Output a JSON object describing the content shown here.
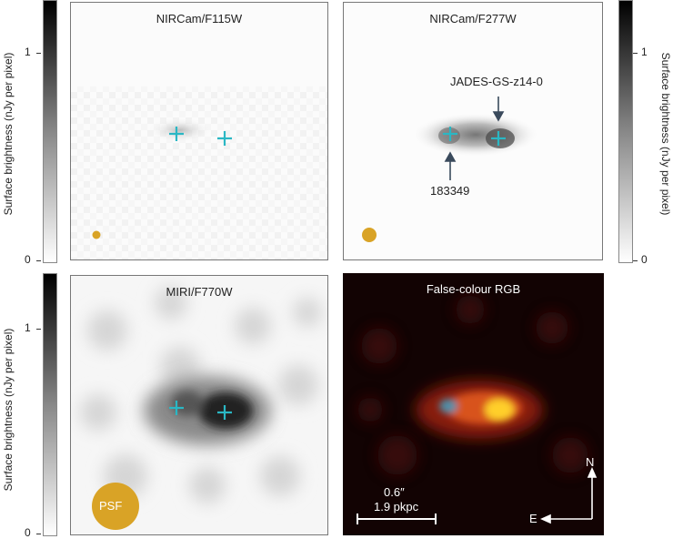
{
  "colorbars": {
    "top_left": {
      "label": "Surface brightness (nJy per pixel)",
      "tick_top": "1",
      "tick_bottom": "0"
    },
    "top_right": {
      "label": "Surface brightness (nJy per pixel)",
      "tick_top": "1",
      "tick_bottom": "0"
    },
    "bottom_left": {
      "label": "Surface brightness (nJy per pixel)",
      "tick_top": "1",
      "tick_bottom": "0"
    }
  },
  "panels": {
    "f115w": {
      "title": "NIRCam/F115W"
    },
    "f277w": {
      "title": "NIRCam/F277W",
      "source_label": "JADES-GS-z14-0",
      "companion_label": "183349"
    },
    "f770w": {
      "title": "MIRI/F770W",
      "psf_label": "PSF"
    },
    "rgb": {
      "title": "False-colour RGB",
      "scale_arcsec": "0.6″",
      "scale_kpc": "1.9 pkpc",
      "compass_north": "N",
      "compass_east": "E"
    }
  },
  "colors": {
    "marker": "#2ab7c4",
    "psf": "#d9a326",
    "arrow": "#3a4a5c"
  }
}
